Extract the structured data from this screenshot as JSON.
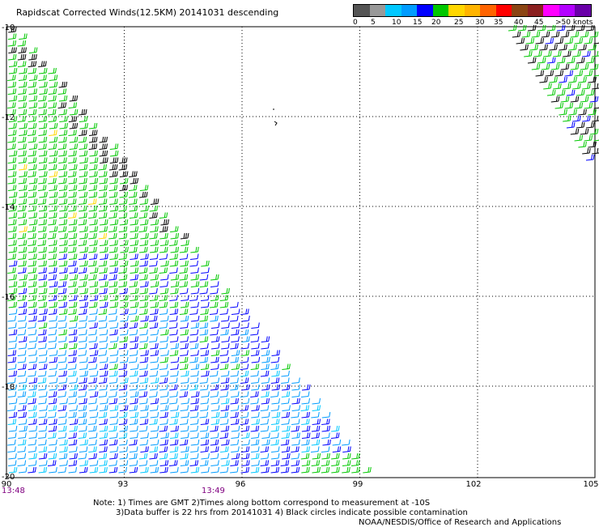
{
  "title": "Rapidscat Corrected Winds(12.5KM) 20141031 descending",
  "legend": {
    "colors": [
      "#555555",
      "#999999",
      "#00c8ff",
      "#009cff",
      "#0000ff",
      "#00c800",
      "#ffd700",
      "#ffb400",
      "#ff6400",
      "#ff0000",
      "#8b4513",
      "#8b2020",
      "#ff00ff",
      "#b400ff",
      "#6a00a8"
    ],
    "tick_labels": [
      "0",
      "5",
      "10",
      "15",
      "20",
      "25",
      "30",
      "35",
      "40",
      "45",
      ">50 knots"
    ]
  },
  "axes": {
    "lat_labels": [
      "-10",
      "-12",
      "-14",
      "-16",
      "-18",
      "-20"
    ],
    "lon_labels": [
      "90",
      "93",
      "96",
      "99",
      "102",
      "105"
    ],
    "time_labels": [
      "13:48",
      "13:49"
    ]
  },
  "notes": {
    "line1": "Note: 1) Times are GMT 2)Times along bottom correspond to measurement at -10S",
    "line2": "3)Data buffer is 22 hrs from 20141031 4) Black circles indicate possible contamination",
    "line3": "NOAA/NESDIS/Office of Research and Applications"
  }
}
